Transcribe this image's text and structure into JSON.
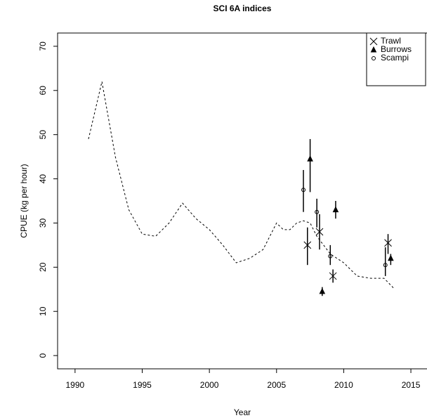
{
  "chart_data": {
    "type": "line",
    "title": "SCI 6A indices",
    "x_label": "Year",
    "y_label": "CPUE (kg per hour)",
    "xlim": [
      1988.7,
      2016.2
    ],
    "xticks": [
      1990,
      1995,
      2000,
      2005,
      2010,
      2015
    ],
    "ylim": [
      -3,
      73
    ],
    "yticks": [
      0,
      10,
      20,
      30,
      40,
      50,
      60,
      70
    ],
    "legend": "top right",
    "line": {
      "color": "#000000",
      "dashed": true,
      "x": [
        1991,
        1992,
        1993,
        1994,
        1995,
        1996,
        1997,
        1998,
        1999,
        2000,
        2001,
        2002,
        2003,
        2004,
        2005,
        2005.5,
        2006,
        2006.5,
        2007,
        2007.5,
        2008,
        2009,
        2010,
        2011,
        2012,
        2013,
        2013.8
      ],
      "values": [
        49,
        62,
        45,
        33,
        27.5,
        27,
        30,
        34.5,
        31,
        28.5,
        25,
        21,
        22,
        24,
        30,
        28.5,
        28.5,
        30,
        30.5,
        30,
        27,
        23,
        21,
        18,
        17.5,
        17.5,
        15
      ]
    },
    "series": [
      {
        "name": "Trawl",
        "marker": "cross",
        "color": "#000000",
        "x": [
          2007.3,
          2008.2,
          2009.2,
          2013.3
        ],
        "values": [
          25,
          28,
          18,
          25.5
        ],
        "lower": [
          20.5,
          24,
          16.5,
          23
        ],
        "upper": [
          29,
          32,
          19.5,
          27.5
        ]
      },
      {
        "name": "Burrows",
        "marker": "triangle",
        "color": "#000000",
        "x": [
          2007.5,
          2008.4,
          2009.4,
          2013.5
        ],
        "values": [
          44.5,
          14.5,
          33,
          22
        ],
        "lower": [
          37,
          13.5,
          31,
          20.5
        ],
        "upper": [
          49,
          15.5,
          35,
          23
        ]
      },
      {
        "name": "Scampi",
        "marker": "circle",
        "color": "#000000",
        "x": [
          2007.0,
          2008.0,
          2009.0,
          2013.1
        ],
        "values": [
          37.5,
          32.5,
          22.5,
          20.5
        ],
        "lower": [
          32.5,
          29,
          20.5,
          18
        ],
        "upper": [
          42,
          35.5,
          25,
          24.5
        ]
      }
    ]
  }
}
